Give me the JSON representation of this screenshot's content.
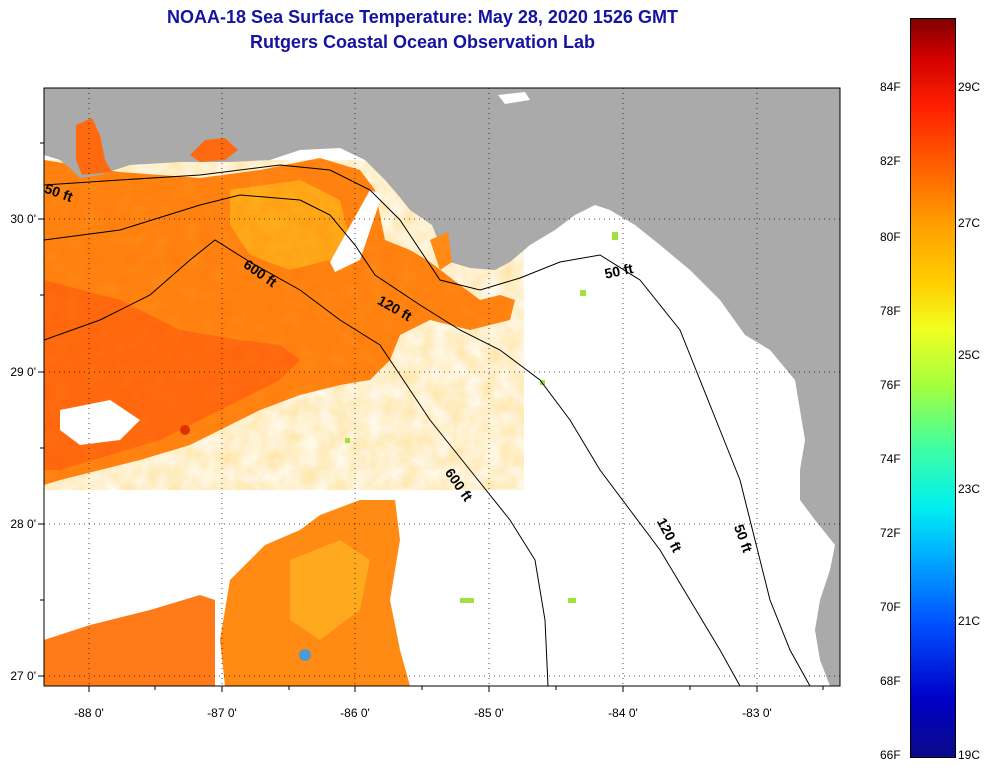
{
  "title": {
    "line1": "NOAA-18 Sea Surface Temperature:  May 28, 2020 1526 GMT",
    "line2": "Rutgers Coastal Ocean Observation Lab"
  },
  "axes": {
    "lon_labels": [
      "-88 0'",
      "-87 0'",
      "-86 0'",
      "-85 0'",
      "-84 0'",
      "-83 0'"
    ],
    "lat_labels": [
      "30 0'",
      "29 0'",
      "28 0'",
      "27 0'"
    ]
  },
  "contours": {
    "labels": [
      "50 ft",
      "600 ft",
      "120 ft",
      "50 ft",
      "600 ft",
      "120 ft",
      "50 ft"
    ]
  },
  "colorbar": {
    "fahrenheit": [
      "84F",
      "82F",
      "80F",
      "78F",
      "76F",
      "74F",
      "72F",
      "70F",
      "68F",
      "66F"
    ],
    "celsius": [
      "29C",
      "27C",
      "25C",
      "23C",
      "21C",
      "19C"
    ]
  },
  "colors": {
    "land": "#aaaaaa",
    "no_data": "#ffffff",
    "warm_water": "#ff7a10",
    "title": "#1414a0"
  }
}
